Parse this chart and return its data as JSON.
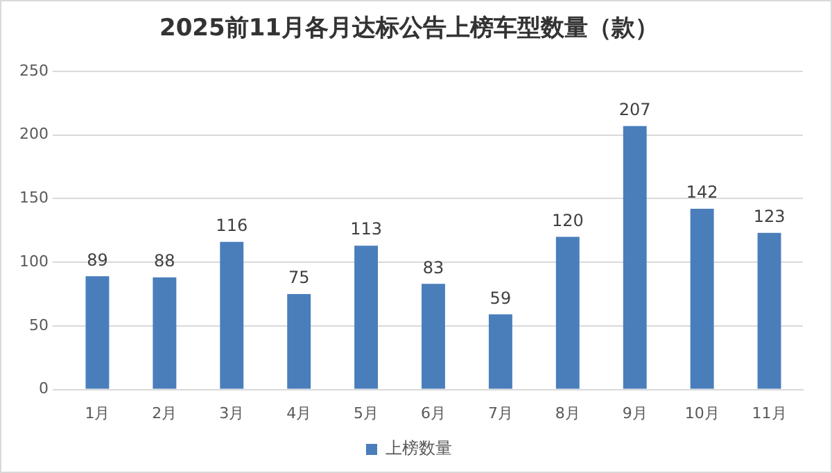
{
  "chart_data": {
    "type": "bar",
    "title": "2025前11月各月达标公告上榜车型数量（款）",
    "categories": [
      "1月",
      "2月",
      "3月",
      "4月",
      "5月",
      "6月",
      "7月",
      "8月",
      "9月",
      "10月",
      "11月"
    ],
    "series": [
      {
        "name": "上榜数量",
        "color": "#4a7ebb",
        "values": [
          89,
          88,
          116,
          75,
          113,
          83,
          59,
          120,
          207,
          142,
          123
        ]
      }
    ],
    "ylim": [
      0,
      250
    ],
    "yticks": [
      0,
      50,
      100,
      150,
      200,
      250
    ],
    "grid": "y",
    "legend": "bottom",
    "data_labels": true
  }
}
